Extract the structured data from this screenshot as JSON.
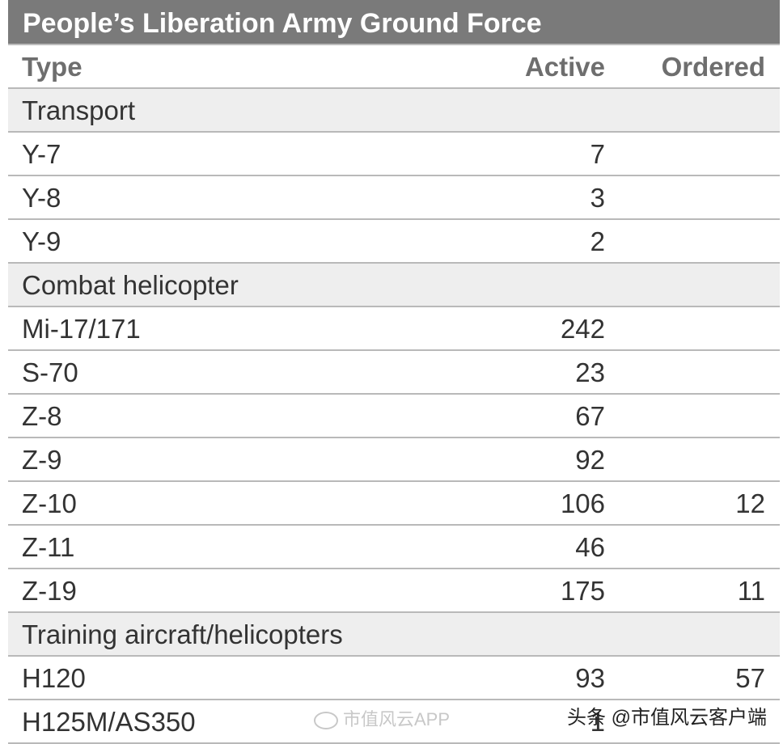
{
  "title": "People’s Liberation Army Ground Force",
  "columns": {
    "type": "Type",
    "active": "Active",
    "ordered": "Ordered"
  },
  "rows": [
    {
      "type": "Transport",
      "active": "",
      "ordered": "",
      "category": true
    },
    {
      "type": "Y-7",
      "active": "7",
      "ordered": ""
    },
    {
      "type": "Y-8",
      "active": "3",
      "ordered": ""
    },
    {
      "type": "Y-9",
      "active": "2",
      "ordered": ""
    },
    {
      "type": "Combat helicopter",
      "active": "",
      "ordered": "",
      "category": true
    },
    {
      "type": "Mi-17/171",
      "active": "242",
      "ordered": ""
    },
    {
      "type": "S-70",
      "active": "23",
      "ordered": ""
    },
    {
      "type": "Z-8",
      "active": "67",
      "ordered": ""
    },
    {
      "type": "Z-9",
      "active": "92",
      "ordered": ""
    },
    {
      "type": "Z-10",
      "active": "106",
      "ordered": "12"
    },
    {
      "type": "Z-11",
      "active": "46",
      "ordered": ""
    },
    {
      "type": "Z-19",
      "active": "175",
      "ordered": "11"
    },
    {
      "type": "Training aircraft/helicopters",
      "active": "",
      "ordered": "",
      "category": true
    },
    {
      "type": "H120",
      "active": "93",
      "ordered": "57"
    },
    {
      "type": "H125M/AS350",
      "active": "1",
      "ordered": ""
    }
  ],
  "watermarks": {
    "weibo": "市值风云APP",
    "toutiao": "头条 @市值风云客户端"
  }
}
